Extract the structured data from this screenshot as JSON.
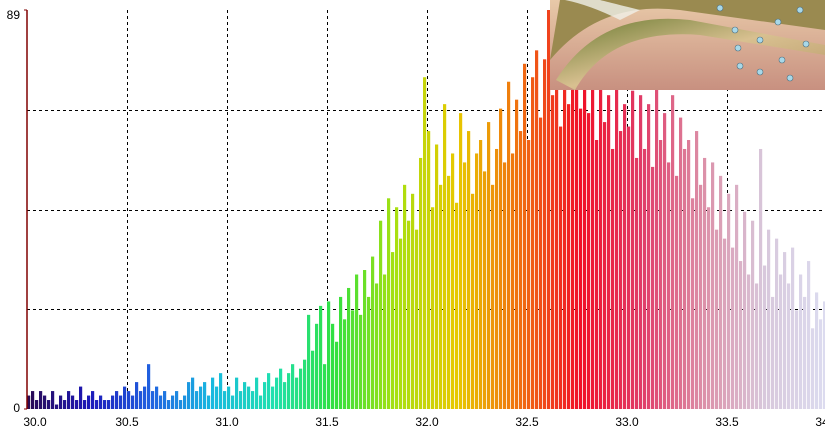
{
  "chart_data": {
    "type": "histogram",
    "bins": [
      30.0,
      30.02,
      30.04,
      30.06,
      30.08,
      30.1,
      30.12,
      30.14,
      30.16,
      30.18,
      30.2,
      30.22,
      30.24,
      30.26,
      30.28,
      30.3,
      30.32,
      30.34,
      30.36,
      30.38,
      30.4,
      30.42,
      30.44,
      30.46,
      30.48,
      30.5,
      30.52,
      30.54,
      30.56,
      30.58,
      30.6,
      30.62,
      30.64,
      30.66,
      30.68,
      30.7,
      30.72,
      30.74,
      30.76,
      30.78,
      30.8,
      30.82,
      30.84,
      30.86,
      30.88,
      30.9,
      30.92,
      30.94,
      30.96,
      30.98,
      31.0,
      31.02,
      31.04,
      31.06,
      31.08,
      31.1,
      31.12,
      31.14,
      31.16,
      31.18,
      31.2,
      31.22,
      31.24,
      31.26,
      31.28,
      31.3,
      31.32,
      31.34,
      31.36,
      31.38,
      31.4,
      31.42,
      31.44,
      31.46,
      31.48,
      31.5,
      31.52,
      31.54,
      31.56,
      31.58,
      31.6,
      31.62,
      31.64,
      31.66,
      31.68,
      31.7,
      31.72,
      31.74,
      31.76,
      31.78,
      31.8,
      31.82,
      31.84,
      31.86,
      31.88,
      31.9,
      31.92,
      31.94,
      31.96,
      31.98,
      32.0,
      32.02,
      32.04,
      32.06,
      32.08,
      32.1,
      32.12,
      32.14,
      32.16,
      32.18,
      32.2,
      32.22,
      32.24,
      32.26,
      32.28,
      32.3,
      32.32,
      32.34,
      32.36,
      32.38,
      32.4,
      32.42,
      32.44,
      32.46,
      32.48,
      32.5,
      32.52,
      32.54,
      32.56,
      32.58,
      32.6,
      32.62,
      32.64,
      32.66,
      32.68,
      32.7,
      32.72,
      32.74,
      32.76,
      32.78,
      32.8,
      32.82,
      32.84,
      32.86,
      32.88,
      32.9,
      32.92,
      32.94,
      32.96,
      32.98,
      33.0,
      33.02,
      33.04,
      33.06,
      33.08,
      33.1,
      33.12,
      33.14,
      33.16,
      33.18,
      33.2,
      33.22,
      33.24,
      33.26,
      33.28,
      33.3,
      33.32,
      33.34,
      33.36,
      33.38,
      33.4,
      33.42,
      33.44,
      33.46,
      33.48,
      33.5,
      33.52,
      33.54,
      33.56,
      33.58,
      33.6,
      33.62,
      33.64,
      33.66,
      33.68,
      33.7,
      33.72,
      33.74,
      33.76,
      33.78,
      33.8,
      33.82,
      33.84,
      33.86,
      33.88,
      33.9,
      33.92,
      33.94,
      33.96,
      33.98,
      34.0
    ],
    "values": [
      3,
      4,
      2,
      4,
      3,
      2,
      4,
      1,
      3,
      2,
      4,
      3,
      2,
      5,
      2,
      3,
      4,
      2,
      3,
      2,
      2,
      3,
      4,
      3,
      5,
      4,
      3,
      6,
      4,
      5,
      10,
      4,
      5,
      3,
      4,
      2,
      3,
      4,
      2,
      3,
      6,
      7,
      4,
      5,
      6,
      3,
      7,
      5,
      8,
      4,
      5,
      3,
      7,
      4,
      6,
      5,
      4,
      7,
      3,
      6,
      8,
      5,
      7,
      9,
      6,
      8,
      10,
      7,
      9,
      11,
      21,
      13,
      19,
      23,
      10,
      24,
      19,
      15,
      25,
      20,
      27,
      22,
      30,
      21,
      31,
      25,
      34,
      28,
      42,
      30,
      47,
      35,
      45,
      38,
      50,
      42,
      48,
      40,
      56,
      74,
      62,
      45,
      59,
      50,
      68,
      52,
      57,
      46,
      66,
      55,
      62,
      48,
      57,
      60,
      53,
      64,
      50,
      58,
      67,
      55,
      73,
      57,
      69,
      62,
      77,
      60,
      74,
      80,
      65,
      78,
      89,
      70,
      85,
      63,
      76,
      68,
      82,
      72,
      67,
      79,
      66,
      73,
      60,
      78,
      64,
      70,
      58,
      75,
      62,
      68,
      63,
      71,
      56,
      70,
      58,
      68,
      54,
      73,
      60,
      66,
      55,
      70,
      52,
      65,
      58,
      60,
      47,
      62,
      50,
      56,
      45,
      55,
      40,
      52,
      38,
      48,
      36,
      50,
      33,
      44,
      30,
      42,
      28,
      58,
      32,
      40,
      25,
      38,
      30,
      35,
      28,
      36,
      22,
      30,
      25,
      33,
      18,
      26,
      20,
      24
    ],
    "colormap": [
      "#2a0a50",
      "#1c18b8",
      "#2060e0",
      "#18b8e0",
      "#20e0b0",
      "#30e040",
      "#a8e010",
      "#e8c800",
      "#f07010",
      "#f01028",
      "#e03c68",
      "#dc90a8",
      "#d8c8dc",
      "#dcdcf0"
    ],
    "xlim": [
      30,
      34
    ],
    "xticks": [
      {
        "value": 30,
        "label": "30.0"
      },
      {
        "value": 30.5,
        "label": "30.5"
      },
      {
        "value": 31,
        "label": "31.0"
      },
      {
        "value": 31.5,
        "label": "31.5"
      },
      {
        "value": 32,
        "label": "32.0"
      },
      {
        "value": 32.5,
        "label": "32.5"
      },
      {
        "value": 33,
        "label": "33.0"
      },
      {
        "value": 33.5,
        "label": "33.5"
      },
      {
        "value": 34,
        "label": "34.0"
      }
    ],
    "ylim": [
      0,
      89
    ],
    "yticks": [
      0,
      89
    ],
    "ygrid": [
      22.25,
      44.5,
      66.75
    ],
    "grid": true
  }
}
